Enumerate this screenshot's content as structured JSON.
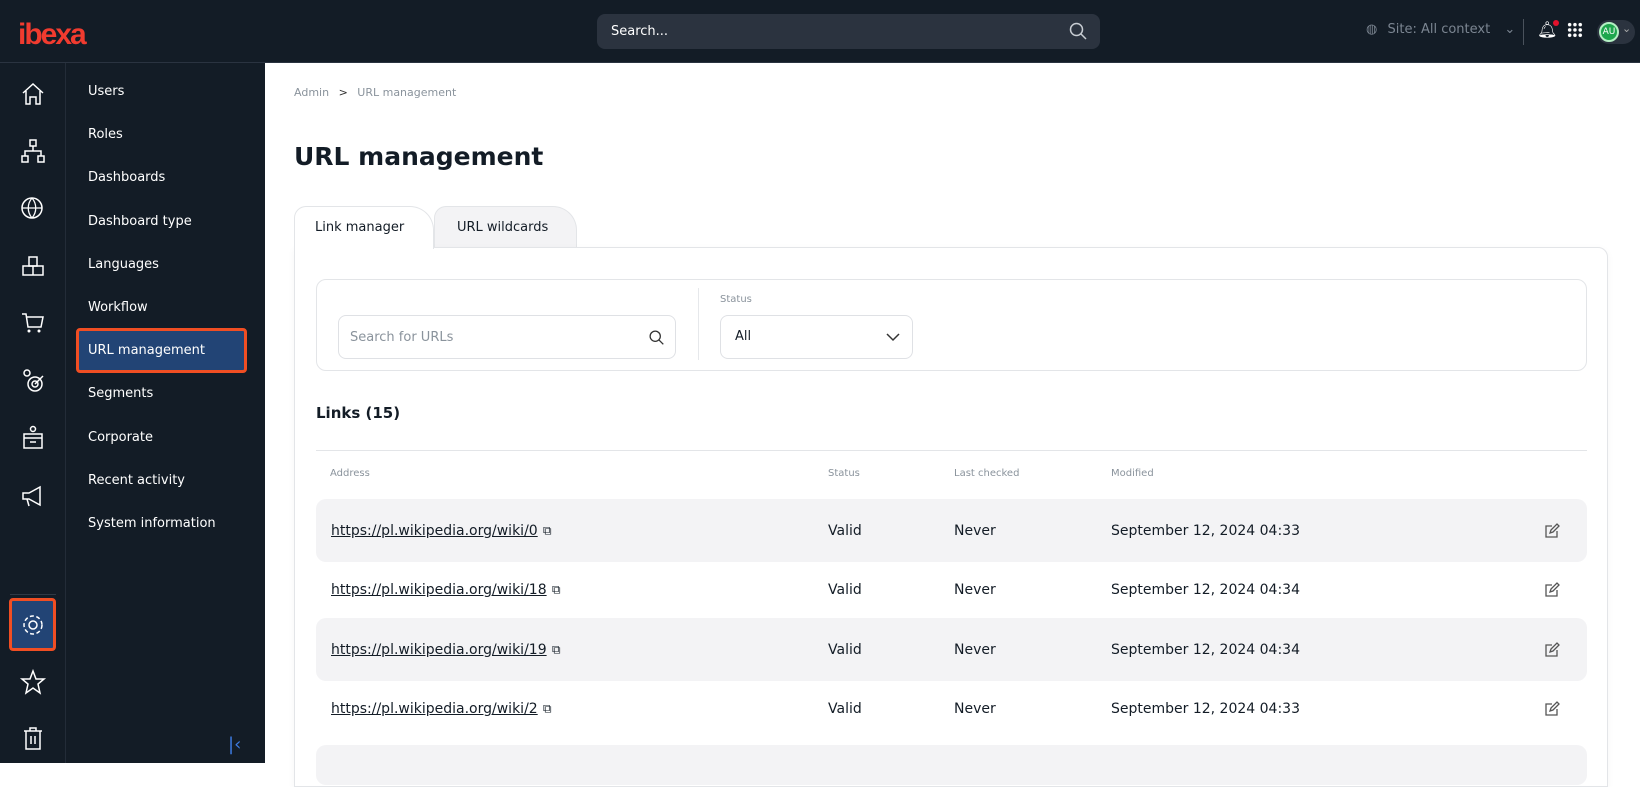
{
  "header": {
    "logo": "ibexa",
    "search_placeholder": "Search...",
    "site_label": "Site: All context",
    "avatar": "AU"
  },
  "rail": [
    "home-icon",
    "content-tree-icon",
    "globe-icon",
    "products-icon",
    "cart-icon",
    "targeting-icon",
    "customer-portal-icon",
    "megaphone-icon",
    "gear-icon",
    "star-icon",
    "trash-icon"
  ],
  "sidebar": {
    "items": [
      {
        "label": "Users"
      },
      {
        "label": "Roles"
      },
      {
        "label": "Dashboards"
      },
      {
        "label": "Dashboard type"
      },
      {
        "label": "Languages"
      },
      {
        "label": "Workflow"
      },
      {
        "label": "URL management",
        "active": true
      },
      {
        "label": "Segments"
      },
      {
        "label": "Corporate"
      },
      {
        "label": "Recent activity"
      },
      {
        "label": "System information"
      }
    ]
  },
  "breadcrumb": {
    "root": "Admin",
    "sep": ">",
    "current": "URL management"
  },
  "page_title": "URL management",
  "tabs": [
    {
      "label": "Link manager",
      "active": true
    },
    {
      "label": "URL wildcards"
    }
  ],
  "filters": {
    "search_placeholder": "Search for URLs",
    "status_label": "Status",
    "status_value": "All"
  },
  "links": {
    "title": "Links (15)",
    "columns": [
      "Address",
      "Status",
      "Last checked",
      "Modified"
    ],
    "rows": [
      {
        "address": "https://pl.wikipedia.org/wiki/0",
        "status": "Valid",
        "last_checked": "Never",
        "modified": "September 12, 2024 04:33"
      },
      {
        "address": "https://pl.wikipedia.org/wiki/18",
        "status": "Valid",
        "last_checked": "Never",
        "modified": "September 12, 2024 04:34"
      },
      {
        "address": "https://pl.wikipedia.org/wiki/19",
        "status": "Valid",
        "last_checked": "Never",
        "modified": "September 12, 2024 04:34"
      },
      {
        "address": "https://pl.wikipedia.org/wiki/2",
        "status": "Valid",
        "last_checked": "Never",
        "modified": "September 12, 2024 04:33"
      }
    ]
  },
  "colors": {
    "topbar": "#131c26",
    "active": "#224475",
    "highlight": "#f04e23",
    "brand": "#f13b2f"
  }
}
